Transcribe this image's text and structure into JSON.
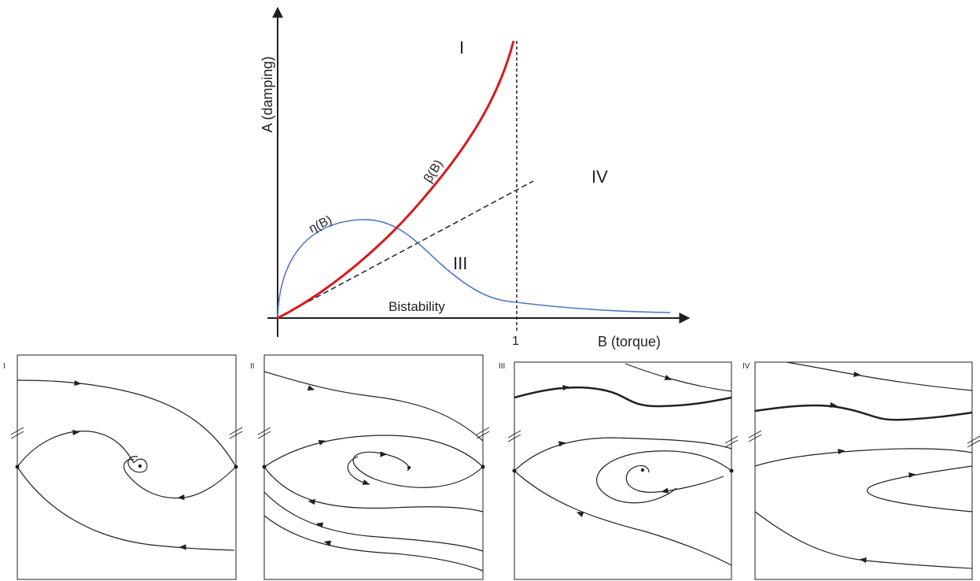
{
  "main_plot": {
    "y_axis_label": "A (damping)",
    "x_axis_label": "B (torque)",
    "x_tick_label": "1",
    "curve_beta_label": "β(B)",
    "curve_eta_label": "η(B)",
    "region_labels": [
      "I",
      "IV",
      "III",
      "Bistability"
    ],
    "colors": {
      "beta_curve": "#d7191c",
      "eta_curve": "#4f79c4",
      "axes": "#231f20"
    }
  },
  "panels": [
    {
      "label": "I"
    },
    {
      "label": "II"
    },
    {
      "label": "III"
    },
    {
      "label": "IV"
    }
  ]
}
